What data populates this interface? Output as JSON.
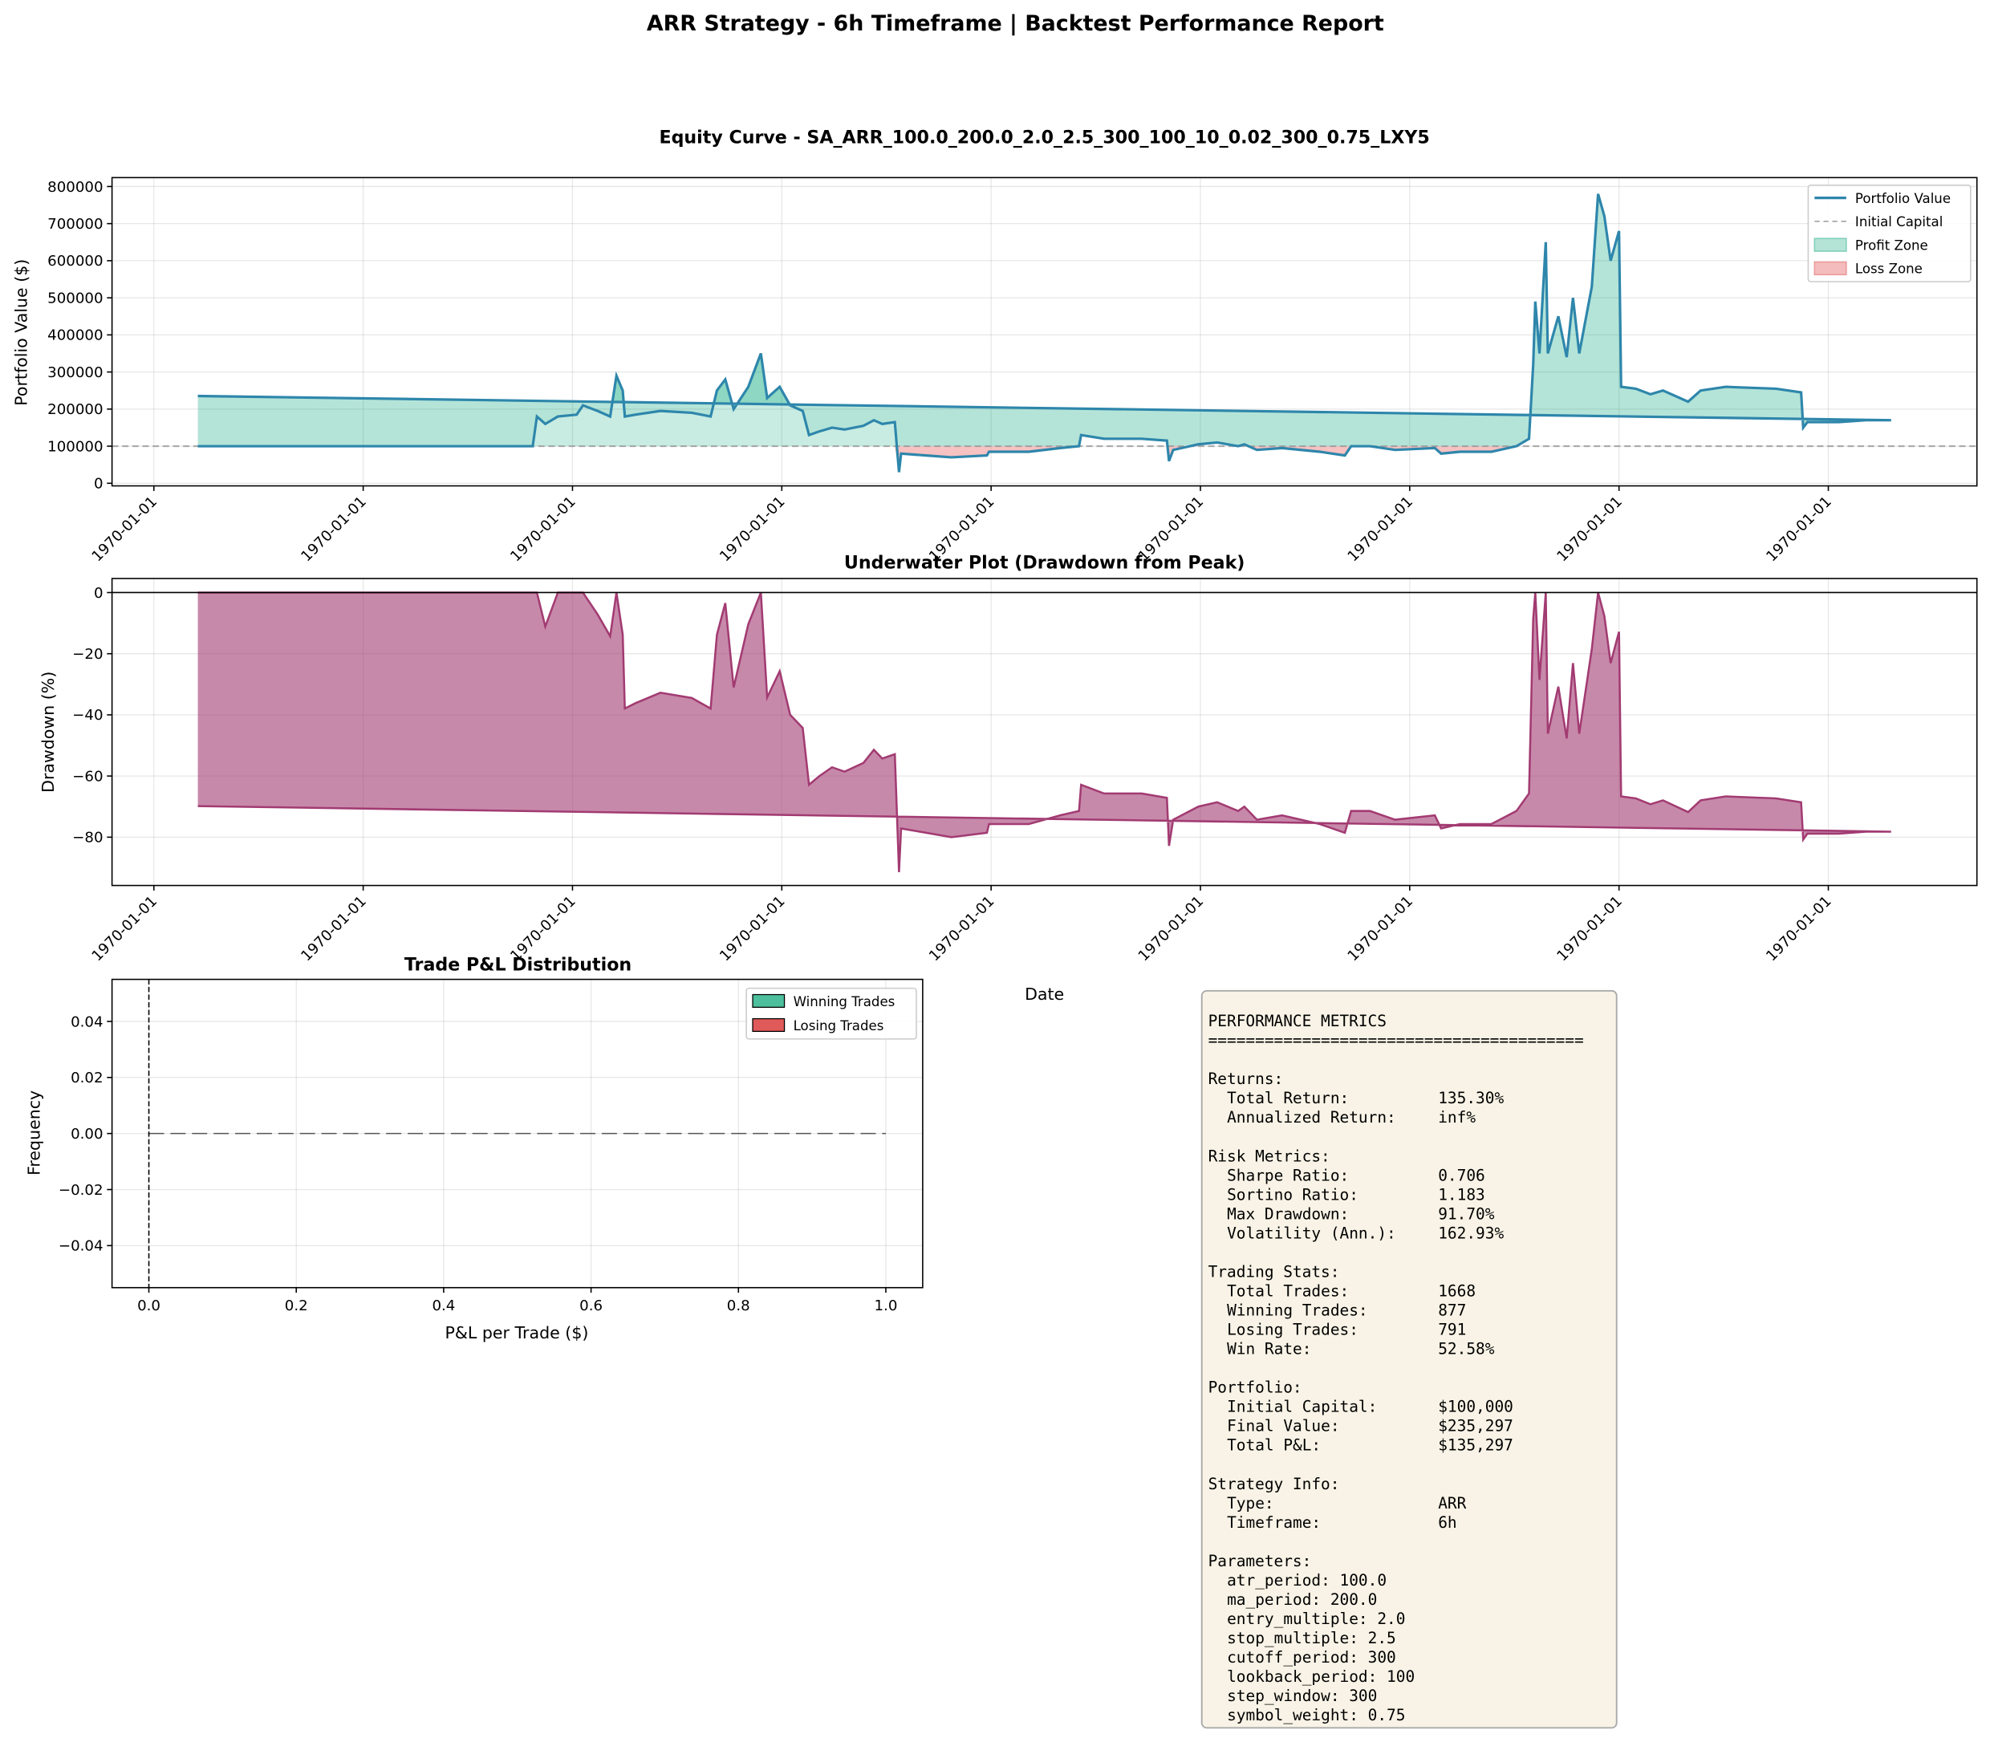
{
  "suptitle": "ARR Strategy - 6h Timeframe | Backtest Performance Report",
  "colors": {
    "portfolio": "#2e86ab",
    "profit": "#06a77d",
    "loss": "#f18f8f",
    "drawdown": "#a23b72",
    "initial": "#999999",
    "win": "#4dbf9c",
    "lose": "#e05a5a",
    "metrics_bg": "#f8f3e6"
  },
  "chart_data": [
    {
      "type": "line",
      "title": "Equity Curve - SA_ARR_100.0_200.0_2.0_2.5_300_100_10_0.02_300_0.75_LXY5",
      "xlabel": "",
      "ylabel": "Portfolio Value ($)",
      "x_tick_labels": [
        "1970-01-01",
        "1970-01-01",
        "1970-01-01",
        "1970-01-01",
        "1970-01-01",
        "1970-01-01",
        "1970-01-01",
        "1970-01-01",
        "1970-01-01"
      ],
      "y_ticks": [
        0,
        100000,
        200000,
        300000,
        400000,
        500000,
        600000,
        700000,
        800000
      ],
      "ylim": [
        -7000,
        824000
      ],
      "xlim": [
        -0.2,
        8.71
      ],
      "grid": true,
      "legend": {
        "placement": "upper-right",
        "entries": [
          "Portfolio Value",
          "Initial Capital",
          "Profit Zone",
          "Loss Zone"
        ]
      },
      "initial_capital": 100000,
      "series_points": [
        [
          0.21,
          100000
        ],
        [
          1.81,
          100000
        ],
        [
          1.83,
          180000
        ],
        [
          1.87,
          160000
        ],
        [
          1.93,
          180000
        ],
        [
          2.02,
          185000
        ],
        [
          2.05,
          210000
        ],
        [
          2.12,
          195000
        ],
        [
          2.18,
          180000
        ],
        [
          2.21,
          290000
        ],
        [
          2.24,
          250000
        ],
        [
          2.25,
          180000
        ],
        [
          2.3,
          185000
        ],
        [
          2.42,
          195000
        ],
        [
          2.57,
          190000
        ],
        [
          2.66,
          180000
        ],
        [
          2.69,
          250000
        ],
        [
          2.73,
          280000
        ],
        [
          2.77,
          200000
        ],
        [
          2.84,
          260000
        ],
        [
          2.9,
          350000
        ],
        [
          2.93,
          230000
        ],
        [
          2.99,
          260000
        ],
        [
          3.04,
          210000
        ],
        [
          3.1,
          195000
        ],
        [
          3.13,
          130000
        ],
        [
          3.18,
          140000
        ],
        [
          3.24,
          150000
        ],
        [
          3.3,
          145000
        ],
        [
          3.39,
          155000
        ],
        [
          3.44,
          170000
        ],
        [
          3.48,
          160000
        ],
        [
          3.54,
          165000
        ],
        [
          3.56,
          30000
        ],
        [
          3.57,
          80000
        ],
        [
          3.69,
          75000
        ],
        [
          3.81,
          70000
        ],
        [
          3.98,
          75000
        ],
        [
          3.99,
          85000
        ],
        [
          4.18,
          85000
        ],
        [
          4.33,
          95000
        ],
        [
          4.42,
          100000
        ],
        [
          4.43,
          130000
        ],
        [
          4.54,
          120000
        ],
        [
          4.72,
          120000
        ],
        [
          4.84,
          115000
        ],
        [
          4.85,
          60000
        ],
        [
          4.87,
          90000
        ],
        [
          4.99,
          105000
        ],
        [
          5.08,
          110000
        ],
        [
          5.18,
          100000
        ],
        [
          5.21,
          105000
        ],
        [
          5.27,
          90000
        ],
        [
          5.39,
          95000
        ],
        [
          5.57,
          85000
        ],
        [
          5.69,
          75000
        ],
        [
          5.72,
          100000
        ],
        [
          5.81,
          100000
        ],
        [
          5.93,
          90000
        ],
        [
          6.12,
          95000
        ],
        [
          6.15,
          80000
        ],
        [
          6.24,
          85000
        ],
        [
          6.39,
          85000
        ],
        [
          6.51,
          100000
        ],
        [
          6.57,
          120000
        ],
        [
          6.59,
          320000
        ],
        [
          6.6,
          490000
        ],
        [
          6.62,
          350000
        ],
        [
          6.65,
          650000
        ],
        [
          6.66,
          350000
        ],
        [
          6.71,
          450000
        ],
        [
          6.75,
          340000
        ],
        [
          6.78,
          500000
        ],
        [
          6.81,
          350000
        ],
        [
          6.87,
          530000
        ],
        [
          6.9,
          780000
        ],
        [
          6.93,
          720000
        ],
        [
          6.96,
          600000
        ],
        [
          7.0,
          680000
        ],
        [
          7.01,
          260000
        ],
        [
          7.08,
          255000
        ],
        [
          7.15,
          240000
        ],
        [
          7.21,
          250000
        ],
        [
          7.33,
          220000
        ],
        [
          7.39,
          250000
        ],
        [
          7.51,
          260000
        ],
        [
          7.75,
          255000
        ],
        [
          7.87,
          245000
        ],
        [
          7.88,
          150000
        ],
        [
          7.9,
          165000
        ],
        [
          8.05,
          165000
        ],
        [
          8.18,
          170000
        ],
        [
          8.3,
          170000
        ],
        [
          0.21,
          235297
        ]
      ]
    },
    {
      "type": "area",
      "title": "Underwater Plot (Drawdown from Peak)",
      "xlabel": "Date",
      "ylabel": "Drawdown (%)",
      "x_tick_labels": [
        "1970-01-01",
        "1970-01-01",
        "1970-01-01",
        "1970-01-01",
        "1970-01-01",
        "1970-01-01",
        "1970-01-01",
        "1970-01-01",
        "1970-01-01"
      ],
      "y_ticks": [
        0,
        -20,
        -40,
        -60,
        -80
      ],
      "ylim": [
        -95.8,
        4.6
      ],
      "xlim": [
        -0.2,
        8.71
      ],
      "grid": true,
      "max_drawdown": -91.7
    },
    {
      "type": "bar",
      "title": "Trade P&L Distribution",
      "xlabel": "P&L per Trade ($)",
      "ylabel": "Frequency",
      "x_ticks": [
        "0.0",
        "0.2",
        "0.4",
        "0.6",
        "0.8",
        "1.0"
      ],
      "y_ticks": [
        "0.04",
        "0.02",
        "0.00",
        "−0.02",
        "−0.04"
      ],
      "xlim": [
        -0.05,
        1.05
      ],
      "ylim": [
        -0.055,
        0.055
      ],
      "grid": true,
      "legend": {
        "placement": "upper-right",
        "entries": [
          "Winning Trades",
          "Losing Trades"
        ]
      },
      "series": [
        {
          "name": "Winning Trades",
          "values": []
        },
        {
          "name": "Losing Trades",
          "values": []
        }
      ]
    }
  ],
  "metrics": {
    "title": "PERFORMANCE METRICS",
    "separator": "========================================",
    "sections": [
      {
        "heading": "Returns:",
        "rows": [
          [
            "Total Return:",
            "135.30%"
          ],
          [
            "Annualized Return:",
            "inf%"
          ]
        ]
      },
      {
        "heading": "Risk Metrics:",
        "rows": [
          [
            "Sharpe Ratio:",
            "0.706"
          ],
          [
            "Sortino Ratio:",
            "1.183"
          ],
          [
            "Max Drawdown:",
            "91.70%"
          ],
          [
            "Volatility (Ann.):",
            "162.93%"
          ]
        ]
      },
      {
        "heading": "Trading Stats:",
        "rows": [
          [
            "Total Trades:",
            "1668"
          ],
          [
            "Winning Trades:",
            "877"
          ],
          [
            "Losing Trades:",
            "791"
          ],
          [
            "Win Rate:",
            "52.58%"
          ]
        ]
      },
      {
        "heading": "Portfolio:",
        "rows": [
          [
            "Initial Capital:",
            "$100,000"
          ],
          [
            "Final Value:",
            "$235,297"
          ],
          [
            "Total P&L:",
            "$135,297"
          ]
        ]
      },
      {
        "heading": "Strategy Info:",
        "rows": [
          [
            "Type:",
            "ARR"
          ],
          [
            "Timeframe:",
            "6h"
          ]
        ]
      },
      {
        "heading": "Parameters:",
        "rows": [
          [
            "atr_period: 100.0",
            ""
          ],
          [
            "ma_period: 200.0",
            ""
          ],
          [
            "entry_multiple: 2.0",
            ""
          ],
          [
            "stop_multiple: 2.5",
            ""
          ],
          [
            "cutoff_period: 300",
            ""
          ],
          [
            "lookback_period: 100",
            ""
          ],
          [
            "step_window: 300",
            ""
          ],
          [
            "symbol_weight: 0.75",
            ""
          ]
        ]
      }
    ]
  }
}
